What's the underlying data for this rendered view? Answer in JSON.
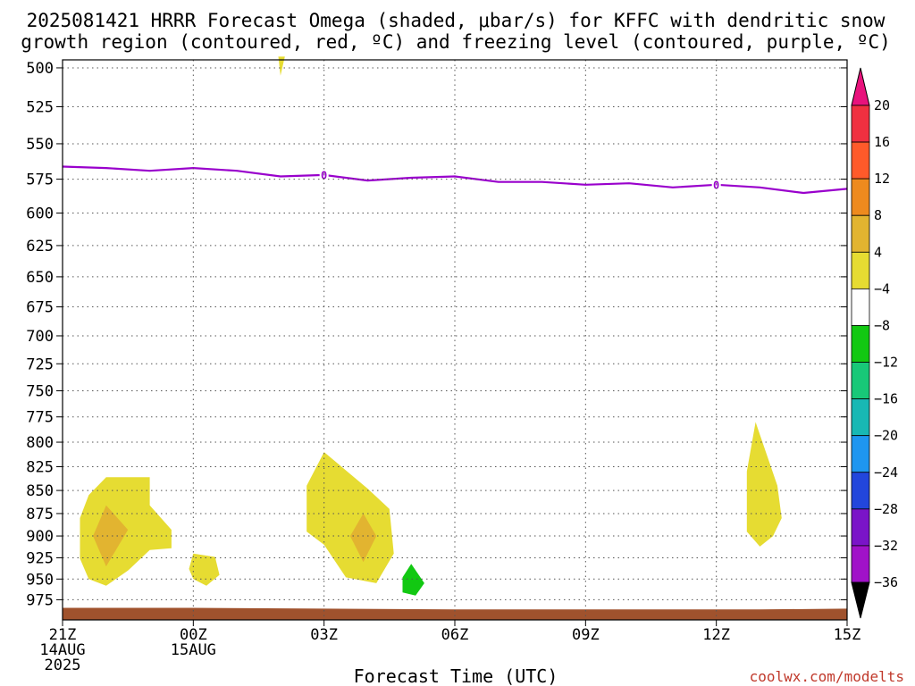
{
  "title": {
    "line1": "2025081421 HRRR Forecast Omega (shaded, μbar/s) for KFFC with dendritic snow",
    "line2": "growth region (contoured, red, ºC) and freezing level (contoured, purple, ºC)"
  },
  "credit": "coolwx.com/modelts",
  "chart_data": {
    "type": "heatmap",
    "xlabel": "Forecast Time (UTC)",
    "ylabel": "",
    "y_axis": {
      "ticks": [
        500,
        525,
        550,
        575,
        600,
        625,
        650,
        675,
        700,
        725,
        750,
        775,
        800,
        825,
        850,
        875,
        900,
        925,
        950,
        975
      ],
      "range": [
        1000,
        495
      ],
      "scale": "log-pressure"
    },
    "x_axis": {
      "range_hours": [
        0,
        18
      ],
      "ticks": [
        {
          "hour": 0,
          "lines": [
            "21Z",
            "14AUG",
            "2025"
          ]
        },
        {
          "hour": 3,
          "lines": [
            "00Z",
            "15AUG"
          ]
        },
        {
          "hour": 6,
          "lines": [
            "03Z"
          ]
        },
        {
          "hour": 9,
          "lines": [
            "06Z"
          ]
        },
        {
          "hour": 12,
          "lines": [
            "09Z"
          ]
        },
        {
          "hour": 15,
          "lines": [
            "12Z"
          ]
        },
        {
          "hour": 18,
          "lines": [
            "15Z"
          ]
        }
      ]
    },
    "grid": true,
    "colorbar": {
      "placement": "right",
      "units": "μbar/s",
      "boundaries": [
        20,
        16,
        12,
        8,
        4,
        -4,
        -8,
        -12,
        -16,
        -20,
        -24,
        -28,
        -32,
        -36
      ],
      "labels": [
        "20",
        "16",
        "12",
        "8",
        "4",
        "-4",
        "-8",
        "-12",
        "-16",
        "-20",
        "-24",
        "-28",
        "-32",
        "-36"
      ],
      "colors": [
        "#f03040",
        "#ff5a2a",
        "#ee8a1e",
        "#e2b430",
        "#e6dc32",
        "#ffffff",
        "#12c812",
        "#18c878",
        "#18b8b4",
        "#1e96f0",
        "#2246dc",
        "#7a14c8",
        "#a012c8",
        "#a8a8a8"
      ],
      "top_arrow_color": "#e8127c",
      "bottom_arrow_color": "#000000"
    },
    "freezing_level": {
      "label": "0",
      "color": "#9900cc",
      "hours": [
        0,
        1,
        2,
        3,
        4,
        5,
        6,
        7,
        8,
        9,
        10,
        11,
        12,
        13,
        14,
        15,
        16,
        17,
        18
      ],
      "pressure": [
        566,
        567,
        569,
        567,
        569,
        573,
        572,
        576,
        574,
        573,
        577,
        577,
        579,
        578,
        581,
        579,
        581,
        585,
        582
      ],
      "label_hours": [
        6,
        15
      ]
    },
    "omega_regions": [
      {
        "name": "upward-motion-area-1",
        "value_range": "4 to 8",
        "outline": [
          [
            1.0,
            836
          ],
          [
            2.0,
            836
          ],
          [
            2.0,
            866
          ],
          [
            2.5,
            893
          ],
          [
            2.5,
            914
          ],
          [
            2.0,
            916
          ],
          [
            1.5,
            940
          ],
          [
            1.0,
            958
          ],
          [
            0.6,
            950
          ],
          [
            0.4,
            926
          ],
          [
            0.4,
            880
          ],
          [
            0.6,
            855
          ]
        ]
      },
      {
        "name": "upward-motion-area-1-core",
        "value_range": "8 to 12",
        "outline": [
          [
            1.0,
            866
          ],
          [
            1.5,
            893
          ],
          [
            1.0,
            935
          ],
          [
            0.7,
            900
          ]
        ]
      },
      {
        "name": "upward-motion-area-2",
        "value_range": "4 to 8",
        "outline": [
          [
            3.0,
            920
          ],
          [
            3.5,
            924
          ],
          [
            3.6,
            945
          ],
          [
            3.3,
            958
          ],
          [
            3.0,
            950
          ],
          [
            2.9,
            938
          ]
        ]
      },
      {
        "name": "upward-motion-area-3",
        "value_range": "4 to 8",
        "outline": [
          [
            6.0,
            810
          ],
          [
            7.0,
            848
          ],
          [
            7.5,
            870
          ],
          [
            7.6,
            920
          ],
          [
            7.2,
            955
          ],
          [
            6.5,
            948
          ],
          [
            6.0,
            910
          ],
          [
            5.6,
            895
          ],
          [
            5.6,
            845
          ]
        ]
      },
      {
        "name": "upward-motion-area-3-core",
        "value_range": "8 to 12",
        "outline": [
          [
            6.9,
            875
          ],
          [
            7.2,
            900
          ],
          [
            6.9,
            930
          ],
          [
            6.6,
            900
          ]
        ]
      },
      {
        "name": "upward-motion-area-4",
        "value_range": "4 to 8",
        "outline": [
          [
            15.9,
            780
          ],
          [
            16.4,
            845
          ],
          [
            16.5,
            880
          ],
          [
            16.3,
            900
          ],
          [
            16.0,
            912
          ],
          [
            15.7,
            895
          ],
          [
            15.7,
            830
          ]
        ]
      },
      {
        "name": "upward-motion-area-5",
        "value_range": "4 to 8",
        "outline": [
          [
            4.95,
            493
          ],
          [
            5.1,
            493
          ],
          [
            5.0,
            505
          ]
        ]
      },
      {
        "name": "downward-motion-area-1",
        "value_range": "-8 to -4",
        "outline": [
          [
            8.0,
            932
          ],
          [
            8.3,
            955
          ],
          [
            8.1,
            970
          ],
          [
            7.8,
            966
          ],
          [
            7.8,
            948
          ]
        ]
      }
    ],
    "ground": {
      "color": "#a0522d",
      "pressure_top": [
        985,
        985,
        986,
        987,
        987,
        987,
        987,
        986
      ],
      "hours": [
        0,
        3,
        6,
        9,
        12,
        15,
        16,
        18
      ]
    }
  }
}
